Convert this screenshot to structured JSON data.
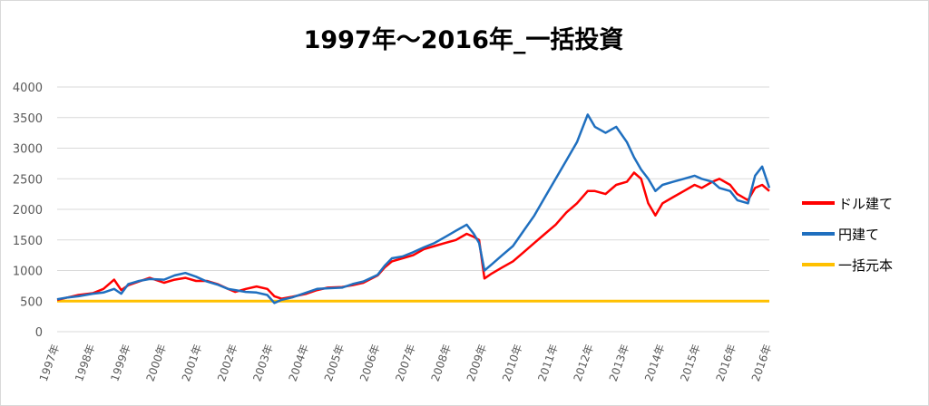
{
  "chart_data": {
    "type": "line",
    "title": "1997年～2016年_一括投資",
    "xlabel": "",
    "ylabel": "",
    "ylim": [
      0,
      4000
    ],
    "yticks": [
      "0",
      "500",
      "1000",
      "1500",
      "2000",
      "2500",
      "3000",
      "3500",
      "4000"
    ],
    "categories": [
      "1997年",
      "1998年",
      "1999年",
      "2000年",
      "2001年",
      "2002年",
      "2003年",
      "2004年",
      "2005年",
      "2006年",
      "2007年",
      "2008年",
      "2009年",
      "2010年",
      "2011年",
      "2012年",
      "2013年",
      "2014年",
      "2015年",
      "2016年",
      "2016年"
    ],
    "grid": true,
    "legend_position": "right",
    "series": [
      {
        "name": "ドル建て",
        "color": "#ff0000",
        "x": [
          1997.0,
          1997.3,
          1997.6,
          1998.0,
          1998.3,
          1998.6,
          1998.8,
          1999.0,
          1999.3,
          1999.6,
          2000.0,
          2000.3,
          2000.6,
          2000.9,
          2001.2,
          2001.5,
          2001.8,
          2002.0,
          2002.3,
          2002.6,
          2002.9,
          2003.1,
          2003.3,
          2003.6,
          2004.0,
          2004.3,
          2004.6,
          2005.0,
          2005.3,
          2005.6,
          2006.0,
          2006.2,
          2006.4,
          2006.7,
          2007.0,
          2007.3,
          2007.6,
          2007.9,
          2008.2,
          2008.5,
          2008.7,
          2008.85,
          2009.0,
          2009.2,
          2009.5,
          2009.8,
          2010.1,
          2010.4,
          2010.7,
          2011.0,
          2011.3,
          2011.6,
          2011.9,
          2012.1,
          2012.4,
          2012.7,
          2013.0,
          2013.2,
          2013.4,
          2013.6,
          2013.8,
          2014.0,
          2014.3,
          2014.6,
          2014.9,
          2015.1,
          2015.4,
          2015.6,
          2015.9,
          2016.1,
          2016.4,
          2016.6,
          2016.8,
          2017.0
        ],
        "y": [
          520,
          560,
          600,
          630,
          700,
          850,
          680,
          760,
          820,
          880,
          800,
          850,
          880,
          830,
          830,
          780,
          700,
          650,
          700,
          740,
          700,
          580,
          540,
          570,
          620,
          680,
          720,
          730,
          760,
          800,
          920,
          1050,
          1150,
          1200,
          1250,
          1350,
          1400,
          1450,
          1500,
          1600,
          1550,
          1500,
          870,
          950,
          1050,
          1150,
          1300,
          1450,
          1600,
          1750,
          1950,
          2100,
          2300,
          2300,
          2250,
          2400,
          2450,
          2600,
          2500,
          2100,
          1900,
          2100,
          2200,
          2300,
          2400,
          2350,
          2450,
          2500,
          2400,
          2250,
          2150,
          2350,
          2400,
          2300
        ]
      },
      {
        "name": "円建て",
        "color": "#1f6fbf",
        "x": [
          1997.0,
          1997.3,
          1997.6,
          1998.0,
          1998.3,
          1998.6,
          1998.8,
          1999.0,
          1999.3,
          1999.6,
          2000.0,
          2000.3,
          2000.6,
          2000.9,
          2001.2,
          2001.5,
          2001.8,
          2002.0,
          2002.3,
          2002.6,
          2002.9,
          2003.1,
          2003.3,
          2003.6,
          2004.0,
          2004.3,
          2004.6,
          2005.0,
          2005.3,
          2005.6,
          2006.0,
          2006.2,
          2006.4,
          2006.7,
          2007.0,
          2007.3,
          2007.6,
          2007.9,
          2008.2,
          2008.5,
          2008.7,
          2008.85,
          2009.0,
          2009.2,
          2009.5,
          2009.8,
          2010.1,
          2010.4,
          2010.7,
          2011.0,
          2011.3,
          2011.6,
          2011.9,
          2012.1,
          2012.4,
          2012.7,
          2013.0,
          2013.2,
          2013.4,
          2013.6,
          2013.8,
          2014.0,
          2014.3,
          2014.6,
          2014.9,
          2015.1,
          2015.4,
          2015.6,
          2015.9,
          2016.1,
          2016.4,
          2016.6,
          2016.8,
          2017.0
        ],
        "y": [
          530,
          560,
          580,
          620,
          640,
          700,
          620,
          780,
          830,
          860,
          850,
          920,
          960,
          900,
          820,
          770,
          700,
          680,
          650,
          640,
          600,
          470,
          520,
          560,
          640,
          700,
          710,
          720,
          780,
          820,
          930,
          1080,
          1200,
          1230,
          1300,
          1380,
          1450,
          1550,
          1650,
          1750,
          1600,
          1450,
          1000,
          1100,
          1250,
          1400,
          1650,
          1900,
          2200,
          2500,
          2800,
          3100,
          3550,
          3350,
          3250,
          3350,
          3100,
          2850,
          2650,
          2500,
          2300,
          2400,
          2450,
          2500,
          2550,
          2500,
          2450,
          2350,
          2300,
          2150,
          2100,
          2550,
          2700,
          2350
        ]
      },
      {
        "name": "一括元本",
        "color": "#ffc000",
        "x": [
          1997.0,
          2017.0
        ],
        "y": [
          500,
          500
        ]
      }
    ]
  }
}
